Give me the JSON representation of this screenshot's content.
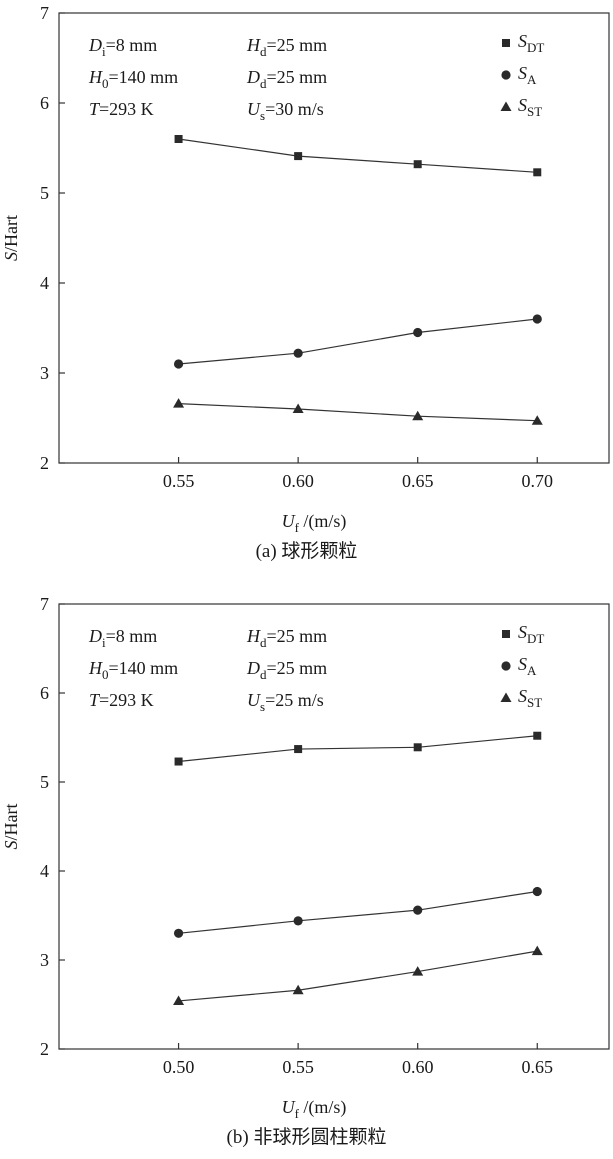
{
  "chart_data": [
    {
      "type": "line",
      "caption": "(a) 球形颗粒",
      "xlabel_main": "U",
      "xlabel_sub": "f",
      "xlabel_unit": "/(m/s)",
      "ylabel": "S/Hart",
      "x_ticks": [
        "0.55",
        "0.60",
        "0.65",
        "0.70"
      ],
      "y_ticks": [
        "2",
        "3",
        "4",
        "5",
        "6",
        "7"
      ],
      "x": [
        0.55,
        0.6,
        0.65,
        0.7
      ],
      "xlim": [
        0.5,
        0.73
      ],
      "ylim": [
        2,
        7
      ],
      "params": [
        {
          "var": "D",
          "sub": "i",
          "value": "=8 mm"
        },
        {
          "var": "H",
          "sub": "d",
          "value": "=25 mm"
        },
        {
          "var": "H",
          "sub": "0",
          "value": "=140 mm"
        },
        {
          "var": "D",
          "sub": "d",
          "value": "=25 mm"
        },
        {
          "var": "T",
          "sub": "",
          "value": "=293 K"
        },
        {
          "var": "U",
          "sub": "s",
          "value": "=30 m/s"
        }
      ],
      "series": [
        {
          "name": "S",
          "name_sub": "DT",
          "marker": "square",
          "values": [
            5.6,
            5.41,
            5.32,
            5.23
          ]
        },
        {
          "name": "S",
          "name_sub": "A",
          "marker": "circle",
          "values": [
            3.1,
            3.22,
            3.45,
            3.6
          ]
        },
        {
          "name": "S",
          "name_sub": "ST",
          "marker": "triangle",
          "values": [
            2.66,
            2.6,
            2.52,
            2.47
          ]
        }
      ],
      "legend_position": "top-right",
      "grid": false
    },
    {
      "type": "line",
      "caption": "(b) 非球形圆柱颗粒",
      "xlabel_main": "U",
      "xlabel_sub": "f",
      "xlabel_unit": "/(m/s)",
      "ylabel": "S/Hart",
      "x_ticks": [
        "0.50",
        "0.55",
        "0.60",
        "0.65"
      ],
      "y_ticks": [
        "2",
        "3",
        "4",
        "5",
        "6",
        "7"
      ],
      "x": [
        0.5,
        0.55,
        0.6,
        0.65
      ],
      "xlim": [
        0.45,
        0.68
      ],
      "ylim": [
        2,
        7
      ],
      "params": [
        {
          "var": "D",
          "sub": "i",
          "value": "=8 mm"
        },
        {
          "var": "H",
          "sub": "d",
          "value": "=25 mm"
        },
        {
          "var": "H",
          "sub": "0",
          "value": "=140 mm"
        },
        {
          "var": "D",
          "sub": "d",
          "value": "=25 mm"
        },
        {
          "var": "T",
          "sub": "",
          "value": "=293 K"
        },
        {
          "var": "U",
          "sub": "s",
          "value": "=25 m/s"
        }
      ],
      "series": [
        {
          "name": "S",
          "name_sub": "DT",
          "marker": "square",
          "values": [
            5.23,
            5.37,
            5.39,
            5.52
          ]
        },
        {
          "name": "S",
          "name_sub": "A",
          "marker": "circle",
          "values": [
            3.3,
            3.44,
            3.56,
            3.77
          ]
        },
        {
          "name": "S",
          "name_sub": "ST",
          "marker": "triangle",
          "values": [
            2.54,
            2.66,
            2.87,
            3.1
          ]
        }
      ],
      "legend_position": "top-right",
      "grid": false
    }
  ]
}
